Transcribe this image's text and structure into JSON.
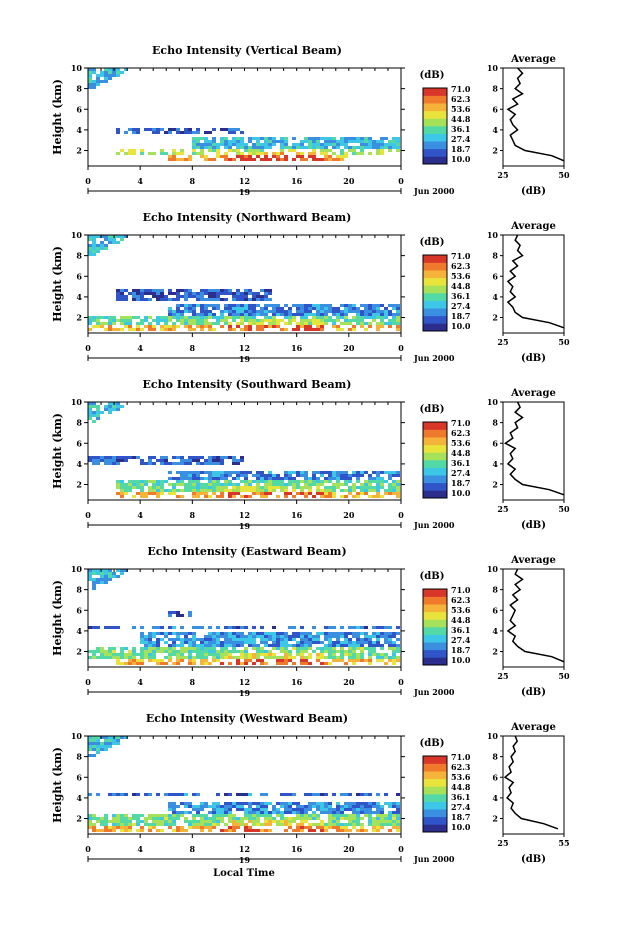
{
  "colors": {
    "scale": [
      "#2b2e8c",
      "#2f55c8",
      "#3a8fe0",
      "#3cc7e6",
      "#52d9a6",
      "#a6e15a",
      "#e8e43c",
      "#f6b33a",
      "#f07a2c",
      "#d9362a"
    ]
  },
  "shared": {
    "time_ticks": [
      "0",
      "4",
      "8",
      "12",
      "16",
      "20",
      "0"
    ],
    "date_label": "19",
    "date_suffix": "Jun 2000",
    "height_ticks": [
      "2",
      "4",
      "6",
      "8",
      "10"
    ],
    "ylabel": "Height (km)",
    "colorbar_unit": "(dB)",
    "colorbar_labels": [
      "71.0",
      "62.3",
      "53.6",
      "44.8",
      "36.1",
      "27.4",
      "18.7",
      "10.0"
    ],
    "avg_title": "Average",
    "avg_unit": "(dB)",
    "xlabel": "Local Time"
  },
  "chart_data": [
    {
      "type": "heatmap",
      "title": "Echo Intensity (Vertical Beam)",
      "xlabel": "",
      "ylabel": "Height (km)",
      "xlim": [
        0,
        24
      ],
      "ylim": [
        0.5,
        10
      ],
      "colorbar": {
        "label": "(dB)",
        "min": 10.0,
        "max": 71.0
      },
      "layers": [
        {
          "h": [
            1.0,
            1.6
          ],
          "t": [
            6,
            20
          ],
          "db": 58
        },
        {
          "h": [
            1.6,
            2.2
          ],
          "t": [
            2,
            24
          ],
          "db": 45
        },
        {
          "h": [
            2.2,
            3.2
          ],
          "t": [
            8,
            24
          ],
          "db": 30
        },
        {
          "h": [
            3.5,
            4.2
          ],
          "t": [
            2,
            12
          ],
          "db": 20
        },
        {
          "h": [
            8.0,
            10.0
          ],
          "t": [
            0,
            3
          ],
          "db": 30
        }
      ],
      "average_profile": {
        "title": "Average",
        "xlabel": "(dB)",
        "xticks": [
          "25",
          "50"
        ],
        "xlim": [
          25,
          50
        ],
        "height": [
          1.0,
          1.5,
          2.0,
          2.5,
          3.0,
          3.5,
          4.0,
          4.5,
          5.0,
          5.5,
          6.0,
          6.5,
          7.0,
          7.5,
          8.0,
          8.5,
          9.0,
          9.5,
          10.0
        ],
        "db": [
          50,
          45,
          34,
          30,
          29,
          28,
          31,
          29,
          28,
          30,
          27,
          31,
          29,
          33,
          30,
          32,
          31,
          33,
          31
        ]
      }
    },
    {
      "type": "heatmap",
      "title": "Echo Intensity (Northward Beam)",
      "xlabel": "",
      "ylabel": "Height (km)",
      "xlim": [
        0,
        24
      ],
      "ylim": [
        0.5,
        10
      ],
      "colorbar": {
        "label": "(dB)",
        "min": 10.0,
        "max": 71.0
      },
      "layers": [
        {
          "h": [
            0.8,
            1.4
          ],
          "t": [
            0,
            24
          ],
          "db": 56
        },
        {
          "h": [
            1.4,
            2.2
          ],
          "t": [
            0,
            24
          ],
          "db": 38
        },
        {
          "h": [
            2.2,
            3.2
          ],
          "t": [
            6,
            24
          ],
          "db": 24
        },
        {
          "h": [
            3.6,
            4.8
          ],
          "t": [
            2,
            14
          ],
          "db": 20
        },
        {
          "h": [
            8.0,
            10.0
          ],
          "t": [
            0,
            3
          ],
          "db": 30
        }
      ],
      "average_profile": {
        "title": "Average",
        "xlabel": "(dB)",
        "xticks": [
          "25",
          "50"
        ],
        "xlim": [
          25,
          50
        ],
        "height": [
          1.0,
          1.5,
          2.0,
          2.5,
          3.0,
          3.5,
          4.0,
          4.5,
          5.0,
          5.5,
          6.0,
          6.5,
          7.0,
          7.5,
          8.0,
          8.5,
          9.0,
          9.5,
          10.0
        ],
        "db": [
          50,
          44,
          33,
          30,
          29,
          27,
          30,
          28,
          29,
          27,
          30,
          28,
          31,
          29,
          33,
          31,
          32,
          30,
          31
        ]
      }
    },
    {
      "type": "heatmap",
      "title": "Echo Intensity (Southward Beam)",
      "xlabel": "",
      "ylabel": "Height (km)",
      "xlim": [
        0,
        24
      ],
      "ylim": [
        0.5,
        10
      ],
      "colorbar": {
        "label": "(dB)",
        "min": 10.0,
        "max": 71.0
      },
      "layers": [
        {
          "h": [
            0.8,
            1.4
          ],
          "t": [
            2,
            24
          ],
          "db": 56
        },
        {
          "h": [
            1.4,
            2.4
          ],
          "t": [
            2,
            24
          ],
          "db": 38
        },
        {
          "h": [
            2.4,
            3.4
          ],
          "t": [
            6,
            24
          ],
          "db": 24
        },
        {
          "h": [
            3.8,
            4.8
          ],
          "t": [
            0,
            12
          ],
          "db": 20
        },
        {
          "h": [
            8.0,
            10.0
          ],
          "t": [
            0,
            3
          ],
          "db": 30
        }
      ],
      "average_profile": {
        "title": "Average",
        "xlabel": "(dB)",
        "xticks": [
          "25",
          "50"
        ],
        "xlim": [
          25,
          50
        ],
        "height": [
          1.0,
          1.5,
          2.0,
          2.5,
          3.0,
          3.5,
          4.0,
          4.5,
          5.0,
          5.5,
          6.0,
          6.5,
          7.0,
          7.5,
          8.0,
          8.5,
          9.0,
          9.5,
          10.0
        ],
        "db": [
          50,
          44,
          33,
          30,
          28,
          30,
          27,
          29,
          28,
          30,
          26,
          29,
          28,
          31,
          30,
          33,
          30,
          32,
          31
        ]
      }
    },
    {
      "type": "heatmap",
      "title": "Echo Intensity (Eastward Beam)",
      "xlabel": "",
      "ylabel": "Height (km)",
      "xlim": [
        0,
        24
      ],
      "ylim": [
        0.5,
        10
      ],
      "colorbar": {
        "label": "(dB)",
        "min": 10.0,
        "max": 71.0
      },
      "layers": [
        {
          "h": [
            0.8,
            1.4
          ],
          "t": [
            2,
            24
          ],
          "db": 56
        },
        {
          "h": [
            1.4,
            2.4
          ],
          "t": [
            0,
            24
          ],
          "db": 40
        },
        {
          "h": [
            2.4,
            3.8
          ],
          "t": [
            4,
            24
          ],
          "db": 26
        },
        {
          "h": [
            4.2,
            4.6
          ],
          "t": [
            0,
            24
          ],
          "db": 22
        },
        {
          "h": [
            5.4,
            6.0
          ],
          "t": [
            6,
            8
          ],
          "db": 20
        },
        {
          "h": [
            8.0,
            10.0
          ],
          "t": [
            0,
            3
          ],
          "db": 30
        }
      ],
      "average_profile": {
        "title": "Average",
        "xlabel": "(dB)",
        "xticks": [
          "25",
          "50"
        ],
        "xlim": [
          25,
          50
        ],
        "height": [
          1.0,
          1.5,
          2.0,
          2.5,
          3.0,
          3.5,
          4.0,
          4.5,
          5.0,
          5.5,
          6.0,
          6.5,
          7.0,
          7.5,
          8.0,
          8.5,
          9.0,
          9.5,
          10.0
        ],
        "db": [
          50,
          45,
          34,
          31,
          29,
          30,
          27,
          30,
          28,
          29,
          30,
          28,
          31,
          29,
          32,
          30,
          33,
          30,
          31
        ]
      }
    },
    {
      "type": "heatmap",
      "title": "Echo Intensity (Westward Beam)",
      "xlabel": "Local Time",
      "ylabel": "Height (km)",
      "xlim": [
        0,
        24
      ],
      "ylim": [
        0.5,
        10
      ],
      "colorbar": {
        "label": "(dB)",
        "min": 10.0,
        "max": 71.0
      },
      "layers": [
        {
          "h": [
            0.8,
            1.4
          ],
          "t": [
            0,
            24
          ],
          "db": 56
        },
        {
          "h": [
            1.4,
            2.4
          ],
          "t": [
            0,
            24
          ],
          "db": 40
        },
        {
          "h": [
            2.4,
            3.6
          ],
          "t": [
            6,
            24
          ],
          "db": 26
        },
        {
          "h": [
            4.2,
            4.6
          ],
          "t": [
            0,
            24
          ],
          "db": 22
        },
        {
          "h": [
            8.0,
            10.0
          ],
          "t": [
            0,
            3
          ],
          "db": 30
        }
      ],
      "average_profile": {
        "title": "Average",
        "xlabel": "(dB)",
        "xticks": [
          "25",
          "55"
        ],
        "xlim": [
          25,
          55
        ],
        "height": [
          1.0,
          1.5,
          2.0,
          2.5,
          3.0,
          3.5,
          4.0,
          4.5,
          5.0,
          5.5,
          6.0,
          6.5,
          7.0,
          7.5,
          8.0,
          8.5,
          9.0,
          9.5,
          10.0
        ],
        "db": [
          52,
          45,
          34,
          31,
          29,
          30,
          27,
          29,
          28,
          30,
          26,
          29,
          28,
          30,
          29,
          31,
          30,
          32,
          31
        ]
      }
    }
  ]
}
